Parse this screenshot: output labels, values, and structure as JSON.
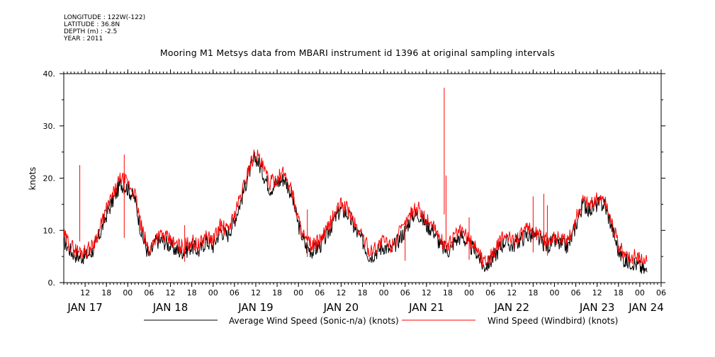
{
  "meta": {
    "longitude": "LONGITUDE : 122W(-122)",
    "latitude": "LATITUDE : 36.8N",
    "depth": "DEPTH (m) : -2.5",
    "year": "YEAR : 2011"
  },
  "chart_data": {
    "type": "line",
    "title": "Mooring M1 Metsys data from MBARI instrument id 1396 at original sampling intervals",
    "ylabel": "knots",
    "xlabel": "",
    "ylim": [
      0,
      40
    ],
    "yticks": [
      0,
      10,
      20,
      30,
      40
    ],
    "ytick_labels": [
      "0.",
      "10.",
      "20.",
      "30.",
      "40."
    ],
    "xlim_hours": [
      0,
      164
    ],
    "hour_ticks": [
      {
        "h": 6,
        "label": "12"
      },
      {
        "h": 12,
        "label": "18"
      },
      {
        "h": 18,
        "label": "00"
      },
      {
        "h": 24,
        "label": "06"
      },
      {
        "h": 30,
        "label": "12"
      },
      {
        "h": 36,
        "label": "18"
      },
      {
        "h": 42,
        "label": "00"
      },
      {
        "h": 48,
        "label": "06"
      },
      {
        "h": 54,
        "label": "12"
      },
      {
        "h": 60,
        "label": "18"
      },
      {
        "h": 66,
        "label": "00"
      },
      {
        "h": 72,
        "label": "06"
      },
      {
        "h": 78,
        "label": "12"
      },
      {
        "h": 84,
        "label": "18"
      },
      {
        "h": 90,
        "label": "00"
      },
      {
        "h": 96,
        "label": "06"
      },
      {
        "h": 102,
        "label": "12"
      },
      {
        "h": 108,
        "label": "18"
      },
      {
        "h": 114,
        "label": "00"
      },
      {
        "h": 120,
        "label": "06"
      },
      {
        "h": 126,
        "label": "12"
      },
      {
        "h": 132,
        "label": "18"
      },
      {
        "h": 138,
        "label": "00"
      },
      {
        "h": 144,
        "label": "06"
      },
      {
        "h": 150,
        "label": "12"
      },
      {
        "h": 156,
        "label": "18"
      },
      {
        "h": 162,
        "label": "00"
      },
      {
        "h": 168,
        "label": "06"
      }
    ],
    "day_labels": [
      {
        "h": 6,
        "label": "JAN 17"
      },
      {
        "h": 30,
        "label": "JAN 18"
      },
      {
        "h": 54,
        "label": "JAN 19"
      },
      {
        "h": 78,
        "label": "JAN 20"
      },
      {
        "h": 102,
        "label": "JAN 21"
      },
      {
        "h": 126,
        "label": "JAN 22"
      },
      {
        "h": 150,
        "label": "JAN 23"
      },
      {
        "h": 174,
        "label": "JAN 24"
      }
    ],
    "x_unit": "hours",
    "series": [
      {
        "name": "Average Wind Speed (Sonic-n/a) (knots)",
        "color": "#000000",
        "x": [
          0,
          2,
          4,
          6,
          8,
          10,
          12,
          14,
          16,
          18,
          20,
          22,
          24,
          26,
          28,
          30,
          32,
          34,
          36,
          38,
          40,
          42,
          44,
          46,
          48,
          50,
          52,
          54,
          56,
          58,
          60,
          62,
          64,
          66,
          68,
          70,
          72,
          74,
          76,
          78,
          80,
          82,
          84,
          86,
          88,
          90,
          92,
          94,
          96,
          98,
          100,
          102,
          104,
          106,
          108,
          110,
          112,
          114,
          116,
          118,
          120,
          122,
          124,
          126,
          128,
          130,
          132,
          134,
          136,
          138,
          140,
          142,
          144,
          146,
          148,
          150,
          152,
          154,
          156,
          158,
          160,
          162,
          164
        ],
        "y": [
          8,
          6,
          5,
          5,
          6,
          9,
          13,
          16,
          19,
          18,
          16,
          9,
          5,
          8,
          8,
          7,
          6,
          6,
          7,
          6,
          8,
          7,
          10,
          9,
          12,
          16,
          21,
          24,
          21,
          18,
          19,
          20,
          17,
          11,
          7,
          6,
          7,
          9,
          12,
          14,
          13,
          10,
          8,
          5,
          6,
          7,
          6,
          8,
          10,
          13,
          13,
          11,
          10,
          7,
          6,
          8,
          9,
          7,
          6,
          3,
          4,
          6,
          8,
          7,
          8,
          9,
          9,
          8,
          7,
          8,
          7,
          7,
          11,
          15,
          14,
          15,
          15,
          11,
          6,
          4,
          4,
          3,
          2
        ]
      },
      {
        "name": "Wind Speed (Windbird) (knots)",
        "color": "#ff0000",
        "x": [
          0,
          2,
          4,
          6,
          8,
          10,
          12,
          14,
          16,
          18,
          20,
          22,
          24,
          26,
          28,
          30,
          32,
          34,
          36,
          38,
          40,
          42,
          44,
          46,
          48,
          50,
          52,
          54,
          56,
          58,
          60,
          62,
          64,
          66,
          68,
          70,
          72,
          74,
          76,
          78,
          80,
          82,
          84,
          86,
          88,
          90,
          92,
          94,
          96,
          98,
          100,
          102,
          104,
          106,
          108,
          110,
          112,
          114,
          116,
          118,
          120,
          122,
          124,
          126,
          128,
          130,
          132,
          134,
          136,
          138,
          140,
          142,
          144,
          146,
          148,
          150,
          152,
          154,
          156,
          158,
          160,
          162,
          164
        ],
        "y": [
          9,
          7,
          6,
          6,
          7,
          10,
          14,
          17,
          20,
          19,
          17,
          10,
          6,
          9,
          9,
          8,
          7,
          7,
          8,
          7,
          9,
          8,
          11,
          10,
          13,
          17,
          22,
          25,
          22,
          19,
          20,
          21,
          18,
          12,
          8,
          7,
          8,
          10,
          13,
          15,
          14,
          11,
          9,
          6,
          7,
          8,
          7,
          9,
          11,
          14,
          14,
          12,
          11,
          8,
          7,
          9,
          10,
          8,
          7,
          4,
          5,
          7,
          9,
          8,
          9,
          10,
          10,
          9,
          8,
          9,
          8,
          8,
          12,
          16,
          15,
          16,
          16,
          12,
          7,
          5,
          5,
          5,
          4
        ],
        "spikes": [
          {
            "x": 4.5,
            "y": 22.5
          },
          {
            "x": 17,
            "y": 24.5
          },
          {
            "x": 68.5,
            "y": 14
          },
          {
            "x": 107,
            "y": 37.3
          },
          {
            "x": 107.5,
            "y": 20.5
          },
          {
            "x": 132,
            "y": 16.5
          },
          {
            "x": 135,
            "y": 17
          },
          {
            "x": 136,
            "y": 14.8
          },
          {
            "x": 34,
            "y": 11
          },
          {
            "x": 96,
            "y": 12
          },
          {
            "x": 114,
            "y": 12.5
          }
        ]
      }
    ],
    "legend": "bottom"
  }
}
